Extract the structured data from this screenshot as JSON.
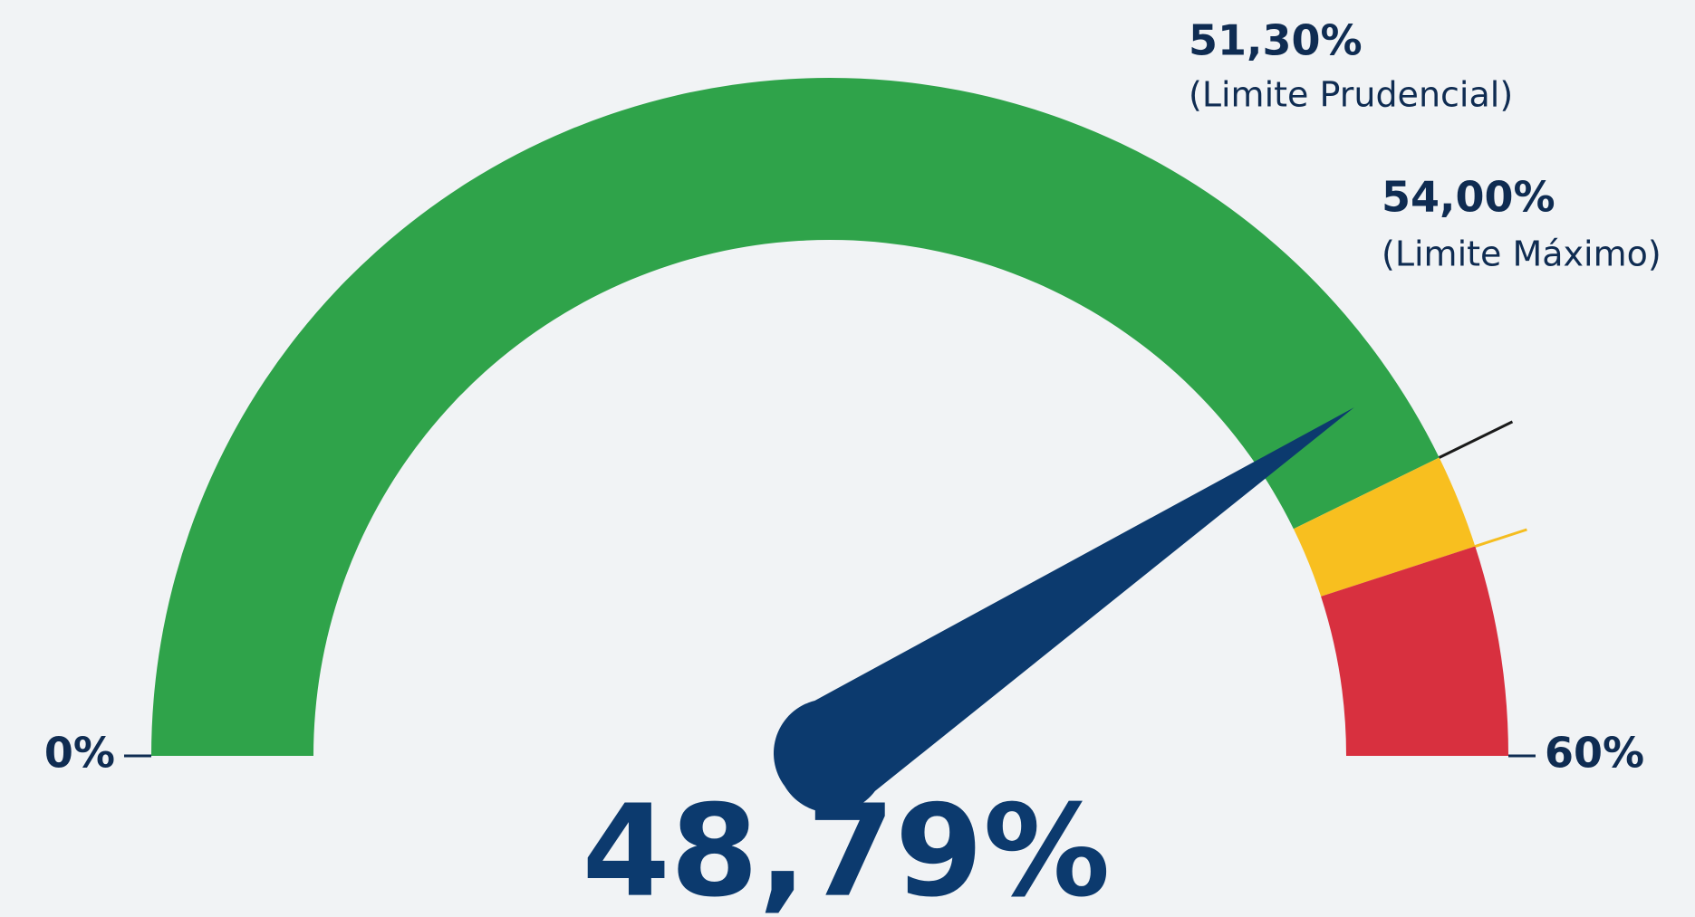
{
  "chart_data": {
    "type": "gauge",
    "value": 48.79,
    "value_label": "48,79%",
    "ylim": [
      0,
      60
    ],
    "yticks": [
      {
        "value": 0,
        "label": "0%"
      },
      {
        "value": 60,
        "label": "60%"
      }
    ],
    "thresholds": [
      {
        "value": 51.3,
        "label": "51,30%",
        "name": "(Limite Prudencial)",
        "line_color": "#1a1a1a"
      },
      {
        "value": 54,
        "label": "54,00%",
        "name": "(Limite Máximo)",
        "line_color": "#f5bd1f"
      }
    ],
    "band_colors": [
      "#2fa34a",
      "#f8bf1f",
      "#d8303f"
    ],
    "needle_color": "#0c3a6e"
  }
}
